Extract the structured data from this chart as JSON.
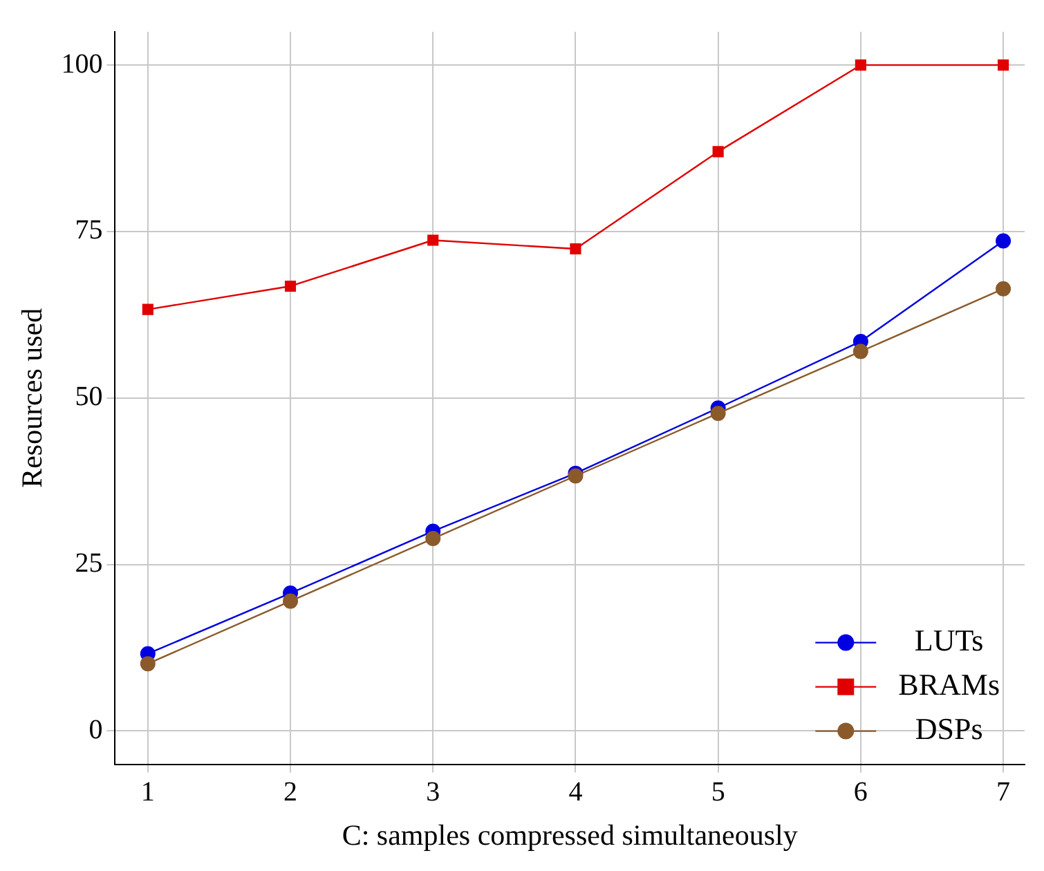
{
  "chart_data": {
    "type": "line",
    "xlabel": "C: samples compressed simultaneously",
    "ylabel": "Resources used",
    "x": [
      1,
      2,
      3,
      4,
      5,
      6,
      7
    ],
    "series": [
      {
        "name": "LUTs",
        "color": "#0000e0",
        "marker": "circle",
        "values": [
          11.6,
          20.7,
          30.0,
          38.7,
          48.5,
          58.5,
          73.6
        ]
      },
      {
        "name": "BRAMs",
        "color": "#e00000",
        "marker": "square",
        "values": [
          63.3,
          66.8,
          73.7,
          72.4,
          87.0,
          100,
          100
        ]
      },
      {
        "name": "DSPs",
        "color": "#8b5a2b",
        "marker": "circle",
        "values": [
          10.1,
          19.5,
          28.9,
          38.3,
          47.7,
          57.0,
          66.4
        ]
      }
    ],
    "xlim": [
      0.77,
      7.15
    ],
    "ylim": [
      -5,
      105
    ],
    "xticks": [
      1,
      2,
      3,
      4,
      5,
      6,
      7
    ],
    "yticks": [
      0,
      25,
      50,
      75,
      100
    ],
    "grid": true,
    "legend": "bottom right"
  }
}
